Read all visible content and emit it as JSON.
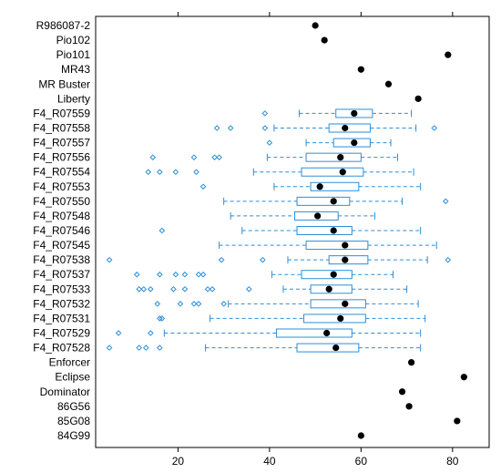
{
  "chart_data": {
    "type": "boxplot",
    "orientation": "horizontal",
    "xlim": [
      2,
      88
    ],
    "x_ticks": [
      20,
      40,
      60,
      80
    ],
    "colors": {
      "box": "#2b8fd9",
      "point": "#000000",
      "frame": "#000000"
    },
    "categories": [
      {
        "label": "R986087-2",
        "point": 50
      },
      {
        "label": "Pio102",
        "point": 52
      },
      {
        "label": "Pio101",
        "point": 79
      },
      {
        "label": "MR43",
        "point": 60
      },
      {
        "label": "MR Buster",
        "point": 66
      },
      {
        "label": "Liberty",
        "point": 72.5
      },
      {
        "label": "F4_R07559",
        "box": {
          "whislo": 46.5,
          "q1": 54.5,
          "med": 58.5,
          "q3": 62.5,
          "whishi": 71
        },
        "fliers": [
          39
        ]
      },
      {
        "label": "F4_R07558",
        "box": {
          "whislo": 41,
          "q1": 53,
          "med": 56.5,
          "q3": 62,
          "whishi": 72
        },
        "fliers": [
          28.5,
          31.5,
          39,
          76
        ]
      },
      {
        "label": "F4_R07557",
        "box": {
          "whislo": 48,
          "q1": 54,
          "med": 58.5,
          "q3": 62,
          "whishi": 66.5
        },
        "fliers": [
          40
        ]
      },
      {
        "label": "F4_R07556",
        "box": {
          "whislo": 39.5,
          "q1": 48,
          "med": 55.5,
          "q3": 60,
          "whishi": 68
        },
        "fliers": [
          14.5,
          23.5,
          28,
          29
        ]
      },
      {
        "label": "F4_R07554",
        "box": {
          "whislo": 36.5,
          "q1": 47,
          "med": 56,
          "q3": 60.5,
          "whishi": 71.5
        },
        "fliers": [
          13.5,
          16,
          19.5,
          24
        ]
      },
      {
        "label": "F4_R07553",
        "box": {
          "whislo": 41,
          "q1": 49,
          "med": 51,
          "q3": 59.5,
          "whishi": 73
        },
        "fliers": [
          25.5
        ]
      },
      {
        "label": "F4_R07550",
        "box": {
          "whislo": 30,
          "q1": 46,
          "med": 54,
          "q3": 57.5,
          "whishi": 69
        },
        "fliers": [
          78.5
        ]
      },
      {
        "label": "F4_R07548",
        "box": {
          "whislo": 31.5,
          "q1": 45.5,
          "med": 50.5,
          "q3": 55,
          "whishi": 63
        },
        "fliers": []
      },
      {
        "label": "F4_R07546",
        "box": {
          "whislo": 34,
          "q1": 46,
          "med": 54,
          "q3": 58,
          "whishi": 73
        },
        "fliers": [
          16.5
        ]
      },
      {
        "label": "F4_R07545",
        "box": {
          "whislo": 29,
          "q1": 48,
          "med": 56.5,
          "q3": 61.5,
          "whishi": 76.5
        },
        "fliers": []
      },
      {
        "label": "F4_R07538",
        "box": {
          "whislo": 44,
          "q1": 53,
          "med": 56.5,
          "q3": 61.5,
          "whishi": 74.5
        },
        "fliers": [
          5,
          29.5,
          38.5,
          79
        ]
      },
      {
        "label": "F4_R07537",
        "box": {
          "whislo": 40.5,
          "q1": 47,
          "med": 54,
          "q3": 58,
          "whishi": 67
        },
        "fliers": [
          11,
          16,
          19.5,
          21.5,
          24.5,
          25.5
        ]
      },
      {
        "label": "F4_R07533",
        "box": {
          "whislo": 43,
          "q1": 49,
          "med": 53,
          "q3": 58,
          "whishi": 70
        },
        "fliers": [
          11.5,
          12.5,
          14,
          19,
          21.5,
          26.5,
          27.5,
          35.5
        ]
      },
      {
        "label": "F4_R07532",
        "box": {
          "whislo": 31,
          "q1": 49,
          "med": 56.5,
          "q3": 61,
          "whishi": 72.5
        },
        "fliers": [
          15.5,
          20.5,
          23.5,
          24.5,
          30
        ]
      },
      {
        "label": "F4_R07531",
        "box": {
          "whislo": 27,
          "q1": 47.5,
          "med": 55.5,
          "q3": 61,
          "whishi": 74
        },
        "fliers": [
          16,
          16.5
        ]
      },
      {
        "label": "F4_R07529",
        "box": {
          "whislo": 17,
          "q1": 41.5,
          "med": 52.5,
          "q3": 58,
          "whishi": 73
        },
        "fliers": [
          7,
          14
        ]
      },
      {
        "label": "F4_R07528",
        "box": {
          "whislo": 26,
          "q1": 46,
          "med": 54.5,
          "q3": 59.5,
          "whishi": 73
        },
        "fliers": [
          5,
          11.5,
          13,
          16
        ]
      },
      {
        "label": "Enforcer",
        "point": 71
      },
      {
        "label": "Eclipse",
        "point": 82.5
      },
      {
        "label": "Dominator",
        "point": 69
      },
      {
        "label": "86G56",
        "point": 70.5
      },
      {
        "label": "85G08",
        "point": 81
      },
      {
        "label": "84G99",
        "point": 60
      }
    ]
  }
}
